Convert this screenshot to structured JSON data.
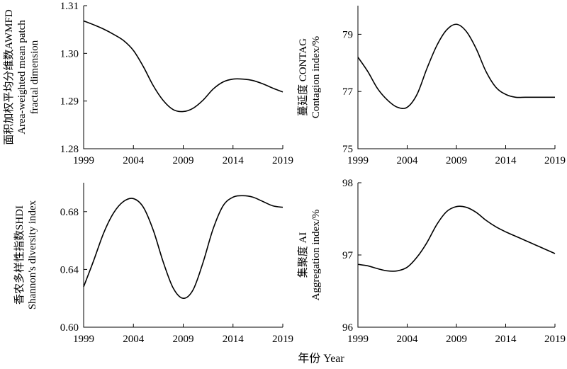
{
  "x_axis_label": "年份 Year",
  "chart_data": [
    {
      "type": "line",
      "id": "awmfd",
      "ylabel_lines": [
        "面积加权平均分维数AWMFD",
        "Area-weighted mean patch",
        "fractal dimension"
      ],
      "x": [
        1999,
        2000,
        2001,
        2002,
        2003,
        2004,
        2005,
        2006,
        2007,
        2008,
        2009,
        2010,
        2011,
        2012,
        2013,
        2014,
        2015,
        2016,
        2017,
        2018,
        2019
      ],
      "y": [
        1.3068,
        1.306,
        1.3051,
        1.304,
        1.3027,
        1.3006,
        1.2972,
        1.2932,
        1.2901,
        1.2882,
        1.2878,
        1.2885,
        1.2902,
        1.2925,
        1.294,
        1.2946,
        1.2946,
        1.2943,
        1.2936,
        1.2927,
        1.2919
      ],
      "xticks": [
        "1999",
        "2004",
        "2009",
        "2014",
        "2019"
      ],
      "xlim": [
        1999,
        2019
      ],
      "ylim": [
        1.28,
        1.31
      ],
      "yticks": [
        "1.28",
        "1.29",
        "1.30",
        "1.31"
      ],
      "ytick_values": [
        1.28,
        1.29,
        1.3,
        1.31
      ],
      "grid": false
    },
    {
      "type": "line",
      "id": "contag",
      "ylabel_lines": [
        "蔓延度 CONTAG",
        "Contagion index/%"
      ],
      "x": [
        1999,
        2000,
        2001,
        2002,
        2003,
        2004,
        2005,
        2006,
        2007,
        2008,
        2009,
        2010,
        2011,
        2012,
        2013,
        2014,
        2015,
        2016,
        2017,
        2018,
        2019
      ],
      "y": [
        78.2,
        77.7,
        77.1,
        76.7,
        76.45,
        76.45,
        76.9,
        77.8,
        78.6,
        79.15,
        79.35,
        79.1,
        78.5,
        77.7,
        77.15,
        76.9,
        76.8,
        76.8,
        76.8,
        76.8,
        76.8
      ],
      "xticks": [
        "1999",
        "2004",
        "2009",
        "2014",
        "2019"
      ],
      "xlim": [
        1999,
        2019
      ],
      "ylim": [
        75,
        80
      ],
      "yticks": [
        "75",
        "77",
        "79"
      ],
      "ytick_values": [
        75,
        77,
        79
      ],
      "grid": false
    },
    {
      "type": "line",
      "id": "shdi",
      "ylabel_lines": [
        "香农多样性指数SHDI",
        "Shannon's diversity index"
      ],
      "x": [
        1999,
        2000,
        2001,
        2002,
        2003,
        2004,
        2005,
        2006,
        2007,
        2008,
        2009,
        2010,
        2011,
        2012,
        2013,
        2014,
        2015,
        2016,
        2017,
        2018,
        2019
      ],
      "y": [
        0.628,
        0.646,
        0.665,
        0.679,
        0.687,
        0.689,
        0.683,
        0.667,
        0.645,
        0.627,
        0.62,
        0.626,
        0.645,
        0.668,
        0.684,
        0.69,
        0.691,
        0.69,
        0.687,
        0.684,
        0.683
      ],
      "xticks": [
        "1999",
        "2004",
        "2009",
        "2014",
        "2019"
      ],
      "xlim": [
        1999,
        2019
      ],
      "ylim": [
        0.6,
        0.7
      ],
      "yticks": [
        "0.60",
        "0.64",
        "0.68"
      ],
      "ytick_values": [
        0.6,
        0.64,
        0.68
      ],
      "grid": false
    },
    {
      "type": "line",
      "id": "ai",
      "ylabel_lines": [
        "集聚度 AI",
        "Aggregation index/%"
      ],
      "x": [
        1999,
        2000,
        2001,
        2002,
        2003,
        2004,
        2005,
        2006,
        2007,
        2008,
        2009,
        2010,
        2011,
        2012,
        2013,
        2014,
        2015,
        2016,
        2017,
        2018,
        2019
      ],
      "y": [
        96.87,
        96.85,
        96.81,
        96.78,
        96.78,
        96.83,
        96.97,
        97.17,
        97.42,
        97.6,
        97.67,
        97.66,
        97.59,
        97.48,
        97.39,
        97.32,
        97.26,
        97.2,
        97.14,
        97.08,
        97.02
      ],
      "xticks": [
        "1999",
        "2004",
        "2009",
        "2014",
        "2019"
      ],
      "xlim": [
        1999,
        2019
      ],
      "ylim": [
        96,
        98
      ],
      "yticks": [
        "96",
        "97",
        "98"
      ],
      "ytick_values": [
        96,
        97,
        98
      ],
      "grid": false
    }
  ]
}
